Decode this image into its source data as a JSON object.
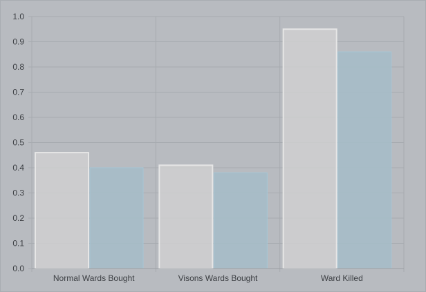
{
  "chart_data": {
    "type": "bar",
    "title": "",
    "xlabel": "",
    "ylabel": "",
    "categories": [
      "Normal Wards Bought",
      "Visons Wards Bought",
      "Ward Killed"
    ],
    "series": [
      {
        "values": [
          0.46,
          0.41,
          0.95
        ],
        "color": "#cfcfd0",
        "stroke": "#e6e6e6"
      },
      {
        "values": [
          0.4,
          0.38,
          0.86
        ],
        "color": "#a6bcc8",
        "stroke": "#a3c6d6"
      }
    ],
    "ylim": [
      0,
      1.0
    ],
    "yticks": [
      "0.0",
      "0.1",
      "0.2",
      "0.3",
      "0.4",
      "0.5",
      "0.6",
      "0.7",
      "0.8",
      "0.9",
      "1.0"
    ],
    "grid": true,
    "legend": "none"
  }
}
